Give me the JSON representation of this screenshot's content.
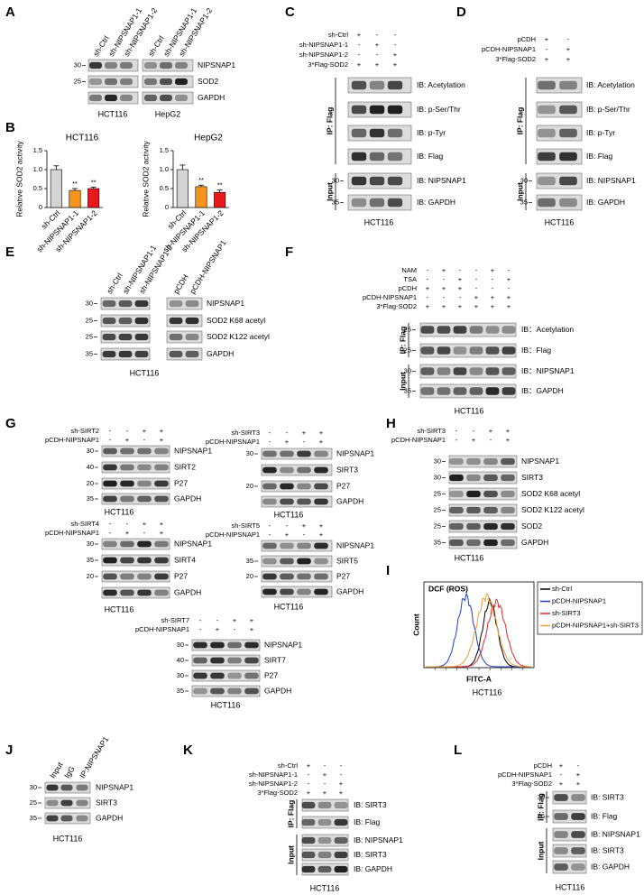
{
  "chart_data": [
    {
      "type": "bar",
      "title": "HCT116",
      "y_label": "Relative SOD2 activity",
      "categories": [
        "sh-Ctrl",
        "sh-NIPSNAP1-1",
        "sh-NIPSNAP1-2"
      ],
      "values": [
        1.0,
        0.45,
        0.5
      ],
      "errors": [
        0.1,
        0.05,
        0.04
      ],
      "colors": [
        "#d4d4d4",
        "#f7941d",
        "#e8191c"
      ],
      "significance": [
        null,
        "**",
        "**"
      ],
      "ylim": [
        0,
        1.5
      ],
      "yticks": [
        0,
        0.5,
        {
          "value": 1,
          "label": "1.0"
        },
        1.5
      ]
    },
    {
      "type": "bar",
      "title": "HepG2",
      "y_label": "Relative SOD2 activity",
      "categories": [
        "sh-Ctrl",
        "sh-NIPSNAP1-1",
        "sh-NIPSNAP1-2"
      ],
      "values": [
        1.0,
        0.55,
        0.4
      ],
      "errors": [
        0.12,
        0.04,
        0.06
      ],
      "colors": [
        "#d4d4d4",
        "#f7941d",
        "#e8191c"
      ],
      "significance": [
        null,
        "**",
        "**"
      ],
      "ylim": [
        0,
        1.5
      ],
      "yticks": [
        0,
        0.5,
        {
          "value": 1,
          "label": "1.0"
        },
        1.5
      ]
    }
  ],
  "panels": [
    {
      "label": "A",
      "lanes": [
        "sh-Ctrl",
        "sh-NIPSNAP1-1",
        "sh-NIPSNAP1-2",
        "sh-Ctrl",
        "sh-NIPSNAP1-1",
        "sh-NIPSNAP1-2"
      ],
      "rows": [
        {
          "marker": 30,
          "label": "NIPSNAP1"
        },
        {
          "marker": 25,
          "label": "SOD2"
        },
        {
          "label": "GAPDH"
        }
      ],
      "captions": [
        "HCT116",
        "HepG2"
      ]
    },
    {
      "label": "B"
    },
    {
      "label": "C",
      "conditions": [
        {
          "name": "sh-Ctrl",
          "signs": [
            "+",
            "-",
            "-"
          ]
        },
        {
          "name": "sh-NIPSNAP1-1",
          "signs": [
            "-",
            "+",
            "-"
          ]
        },
        {
          "name": "sh-NIPSNAP1-2",
          "signs": [
            "-",
            "-",
            "+"
          ]
        },
        {
          "name": "3*Flag-SOD2",
          "signs": [
            "+",
            "+",
            "+"
          ]
        }
      ],
      "rows": [
        {
          "label": "IB: Acetylation"
        },
        {
          "label": "IB: p-Ser/Thr"
        },
        {
          "label": "IB: p-Tyr"
        },
        {
          "label": "IB: Flag"
        },
        {
          "marker": 30,
          "label": "IB: NIPSNAP1"
        },
        {
          "marker": 35,
          "label": "IB: GAPDH"
        }
      ],
      "groups": [
        "IP: Flag",
        "Input"
      ],
      "captions": [
        "HCT116"
      ]
    },
    {
      "label": "D",
      "conditions": [
        {
          "name": "pCDH",
          "signs": [
            "+",
            "-"
          ]
        },
        {
          "name": "pCDH-NIPSNAP1",
          "signs": [
            "-",
            "+"
          ]
        },
        {
          "name": "3*Flag-SOD2",
          "signs": [
            "+",
            "+"
          ]
        }
      ],
      "rows": [
        {
          "label": "IB: Acetylation"
        },
        {
          "label": "IB: p-Ser/Thr"
        },
        {
          "label": "IB: p-Tyr"
        },
        {
          "label": "IB: Flag"
        },
        {
          "marker": 30,
          "label": "IB: NIPSNAP1"
        },
        {
          "marker": 35,
          "label": "IB: GAPDH"
        }
      ],
      "groups": [
        "IP: Flag",
        "Input"
      ],
      "captions": [
        "HCT116"
      ]
    },
    {
      "label": "E",
      "lanes": [
        "sh-Ctrl",
        "sh-NIPSNAP1-1",
        "sh-NIPSNAP1-2",
        "pCDH",
        "pCDH-NIPSNAP1"
      ],
      "rows": [
        {
          "marker": 30,
          "label": "NIPSNAP1"
        },
        {
          "marker": 25,
          "label": "SOD2 K68 acetyl"
        },
        {
          "marker": 25,
          "label": "SOD2 K122 acetyl"
        },
        {
          "marker": 35,
          "label": "GAPDH"
        }
      ],
      "captions": [
        "HCT116"
      ]
    },
    {
      "label": "F",
      "conditions": [
        {
          "name": "NAM",
          "signs": [
            "-",
            "+",
            "-",
            "-",
            "+",
            "-"
          ]
        },
        {
          "name": "TSA",
          "signs": [
            "-",
            "-",
            "+",
            "-",
            "-",
            "+"
          ]
        },
        {
          "name": "pCDH",
          "signs": [
            "+",
            "+",
            "+",
            "-",
            "-",
            "-"
          ]
        },
        {
          "name": "pCDH-NIPSNAP1",
          "signs": [
            "-",
            "-",
            "-",
            "+",
            "+",
            "+"
          ]
        },
        {
          "name": "3*Flag-SOD2",
          "signs": [
            "+",
            "+",
            "+",
            "+",
            "+",
            "+"
          ]
        }
      ],
      "rows": [
        {
          "marker": 25,
          "label": "IB：Acetylation"
        },
        {
          "marker": 25,
          "label": "IB：Flag"
        },
        {
          "marker": 30,
          "label": "IB：NIPSNAP1"
        },
        {
          "marker": 35,
          "label": "IB：GAPDH"
        }
      ],
      "groups": [
        "IP: Flag",
        "Input"
      ],
      "captions": [
        "HCT116"
      ]
    },
    {
      "label": "G",
      "conditions": [
        {
          "name": "sh-SIRT2",
          "signs": [
            "-",
            "-",
            "+",
            "+"
          ]
        },
        {
          "name": "pCDH-NIPSNAP1",
          "signs": [
            "-",
            "+",
            "-",
            "+"
          ]
        }
      ],
      "rows": [
        {
          "marker": 30,
          "label": "NIPSNAP1"
        },
        {
          "marker": 40,
          "label": "SIRT2"
        },
        {
          "marker": 20,
          "label": "P27"
        },
        {
          "marker": 35,
          "label": "GAPDH"
        }
      ],
      "captions": [
        "HCT116"
      ]
    },
    {
      "conditions": [
        {
          "name": "sh-SIRT3",
          "signs": [
            "-",
            "-",
            "+",
            "+"
          ]
        },
        {
          "name": "pCDH-NIPSNAP1",
          "signs": [
            "-",
            "+",
            "-",
            "+"
          ]
        }
      ],
      "rows": [
        {
          "marker": 30,
          "label": "NIPSNAP1"
        },
        {
          "label": "SIRT3"
        },
        {
          "marker": 20,
          "label": "P27"
        },
        {
          "label": "GAPDH"
        }
      ],
      "captions": [
        "HCT116"
      ]
    },
    {
      "conditions": [
        {
          "name": "sh-SIRT4",
          "signs": [
            "-",
            "-",
            "+",
            "+"
          ]
        },
        {
          "name": "pCDH-NIPSNAP1",
          "signs": [
            "-",
            "+",
            "-",
            "+"
          ]
        }
      ],
      "rows": [
        {
          "marker": 30,
          "label": "NIPSNAP1"
        },
        {
          "marker": 35,
          "label": "SIRT4"
        },
        {
          "marker": 20,
          "label": "P27"
        },
        {
          "label": "GAPDH"
        }
      ],
      "captions": [
        "HCT116"
      ]
    },
    {
      "conditions": [
        {
          "name": "sh-SIRT5",
          "signs": [
            "-",
            "-",
            "+",
            "+"
          ]
        },
        {
          "name": "pCDH-NIPSNAP1",
          "signs": [
            "-",
            "+",
            "-",
            "+"
          ]
        }
      ],
      "rows": [
        {
          "label": "NIPSNAP1"
        },
        {
          "marker": 35,
          "label": "SIRT5"
        },
        {
          "marker": 20,
          "label": "P27"
        },
        {
          "label": "GAPDH"
        }
      ],
      "captions": [
        "HCT116"
      ]
    },
    {
      "conditions": [
        {
          "name": "sh-SIRT7",
          "signs": [
            "-",
            "-",
            "+",
            "+"
          ]
        },
        {
          "name": "pCDH-NIPSNAP1",
          "signs": [
            "-",
            "+",
            "-",
            "+"
          ]
        }
      ],
      "rows": [
        {
          "marker": 30,
          "label": "NIPSNAP1"
        },
        {
          "marker": 40,
          "label": "SIRT7"
        },
        {
          "marker": 30,
          "label": "P27"
        },
        {
          "marker": 35,
          "label": "GAPDH"
        }
      ],
      "captions": [
        "HCT116"
      ]
    },
    {
      "label": "H",
      "conditions": [
        {
          "name": "sh-SIRT3",
          "signs": [
            "-",
            "-",
            "+",
            "+"
          ]
        },
        {
          "name": "pCDH-NIPSNAP1",
          "signs": [
            "-",
            "+",
            "-",
            "+"
          ]
        }
      ],
      "rows": [
        {
          "marker": 30,
          "label": "NIPSNAP1"
        },
        {
          "marker": 30,
          "label": "SIRT3"
        },
        {
          "marker": 25,
          "label": "SOD2 K68 acetyl"
        },
        {
          "marker": 25,
          "label": "SOD2 K122 acetyl"
        },
        {
          "marker": 25,
          "label": "SOD2"
        },
        {
          "marker": 35,
          "label": "GAPDH"
        }
      ],
      "captions": [
        "HCT116"
      ]
    },
    {
      "label": "I",
      "title": "DCF (ROS)",
      "y_label": "Count",
      "x_label": "FITC-A",
      "legend": [
        {
          "name": "sh-Ctrl",
          "color": "#000000"
        },
        {
          "name": "pCDH-NIPSNAP1",
          "color": "#1f3fc4"
        },
        {
          "name": "sh-SIRT3",
          "color": "#e3262b"
        },
        {
          "name": "pCDH-NIPSNAP1+sh-SIRT3",
          "color": "#f39c34"
        }
      ],
      "captions": [
        "HCT116"
      ]
    },
    {
      "label": "J",
      "lanes": [
        "Input",
        "IgG",
        "IP:NIPSNAP1"
      ],
      "rows": [
        {
          "marker": 30,
          "label": "NIPSNAP1"
        },
        {
          "marker": 25,
          "label": "SIRT3"
        },
        {
          "marker": 35,
          "label": "GAPDH"
        }
      ],
      "captions": [
        "HCT116"
      ]
    },
    {
      "label": "K",
      "conditions": [
        {
          "name": "sh-Ctrl",
          "signs": [
            "+",
            "-",
            "-"
          ]
        },
        {
          "name": "sh-NIPSNAP1-1",
          "signs": [
            "-",
            "+",
            "-"
          ]
        },
        {
          "name": "sh-NIPSNAP1-2",
          "signs": [
            "-",
            "-",
            "+"
          ]
        },
        {
          "name": "3*Flag-SOD2",
          "signs": [
            "+",
            "+",
            "+"
          ]
        }
      ],
      "rows": [
        {
          "label": "IB: SIRT3"
        },
        {
          "label": "IB: Flag"
        },
        {
          "label": "IB: NIPSNAP1"
        },
        {
          "label": "IB: SIRT3"
        },
        {
          "label": "IB: GAPDH"
        }
      ],
      "groups": [
        "IP: Flag",
        "Input"
      ],
      "captions": [
        "HCT116"
      ]
    },
    {
      "label": "L",
      "conditions": [
        {
          "name": "pCDH",
          "signs": [
            "+",
            "-"
          ]
        },
        {
          "name": "pCDH-NIPSNAP1",
          "signs": [
            "-",
            "+"
          ]
        },
        {
          "name": "3*Flag-SOD2",
          "signs": [
            "+",
            "+"
          ]
        }
      ],
      "rows": [
        {
          "marker": 30,
          "label": "IB: SIRT3"
        },
        {
          "marker": 25,
          "label": "IB: Flag"
        },
        {
          "label": "IB: NIPSNAP1"
        },
        {
          "label": "IB: SIRT3"
        },
        {
          "label": "IB: GAPDH"
        }
      ],
      "groups": [
        "IP: Flag",
        "Input"
      ],
      "captions": [
        "HCT116"
      ]
    }
  ]
}
